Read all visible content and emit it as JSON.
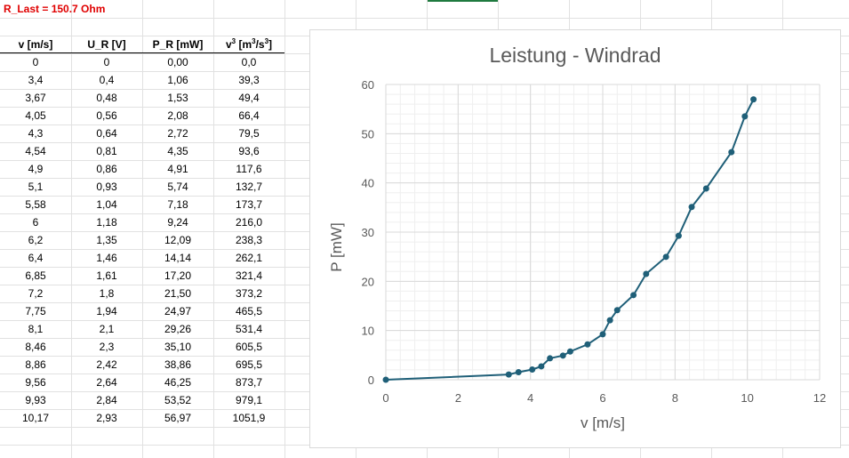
{
  "sheet": {
    "r_last_label": "R_Last = 150.7 Ohm",
    "columns": [
      {
        "base": "v [m/s]",
        "sup1": "",
        "mid": "",
        "sup2": "",
        "tail": ""
      },
      {
        "base": "U_R [V]",
        "sup1": "",
        "mid": "",
        "sup2": "",
        "tail": ""
      },
      {
        "base": "P_R [mW]",
        "sup1": "",
        "mid": "",
        "sup2": "",
        "tail": ""
      },
      {
        "base": "v",
        "sup1": "3",
        "mid": " [m",
        "sup2": "3",
        "tail": "/s"
      }
    ],
    "header_suffix": "3",
    "header_close": "]",
    "rows": [
      [
        "0",
        "0",
        "0,00",
        "0,0"
      ],
      [
        "3,4",
        "0,4",
        "1,06",
        "39,3"
      ],
      [
        "3,67",
        "0,48",
        "1,53",
        "49,4"
      ],
      [
        "4,05",
        "0,56",
        "2,08",
        "66,4"
      ],
      [
        "4,3",
        "0,64",
        "2,72",
        "79,5"
      ],
      [
        "4,54",
        "0,81",
        "4,35",
        "93,6"
      ],
      [
        "4,9",
        "0,86",
        "4,91",
        "117,6"
      ],
      [
        "5,1",
        "0,93",
        "5,74",
        "132,7"
      ],
      [
        "5,58",
        "1,04",
        "7,18",
        "173,7"
      ],
      [
        "6",
        "1,18",
        "9,24",
        "216,0"
      ],
      [
        "6,2",
        "1,35",
        "12,09",
        "238,3"
      ],
      [
        "6,4",
        "1,46",
        "14,14",
        "262,1"
      ],
      [
        "6,85",
        "1,61",
        "17,20",
        "321,4"
      ],
      [
        "7,2",
        "1,8",
        "21,50",
        "373,2"
      ],
      [
        "7,75",
        "1,94",
        "24,97",
        "465,5"
      ],
      [
        "8,1",
        "2,1",
        "29,26",
        "531,4"
      ],
      [
        "8,46",
        "2,3",
        "35,10",
        "605,5"
      ],
      [
        "8,86",
        "2,42",
        "38,86",
        "695,5"
      ],
      [
        "9,56",
        "2,64",
        "46,25",
        "873,7"
      ],
      [
        "9,93",
        "2,84",
        "53,52",
        "979,1"
      ],
      [
        "10,17",
        "2,93",
        "56,97",
        "1051,9"
      ]
    ]
  },
  "colors": {
    "series": "#1f5f78",
    "r_last": "#e00000",
    "grid_major": "#d9d9d9",
    "grid_minor": "#efefef",
    "cell_grid": "#e1e1e1"
  },
  "chart_data": {
    "type": "scatter",
    "mode": "lines+markers",
    "title": "Leistung - Windrad",
    "xlabel": "v [m/s]",
    "ylabel": "P [mW]",
    "xlim": [
      0,
      12
    ],
    "ylim": [
      0,
      60
    ],
    "xticks": [
      0,
      2,
      4,
      6,
      8,
      10,
      12
    ],
    "yticks": [
      0,
      10,
      20,
      30,
      40,
      50,
      60
    ],
    "grid": true,
    "minor_grid": true,
    "legend": "none",
    "series": [
      {
        "x": [
          0,
          3.4,
          3.67,
          4.05,
          4.3,
          4.54,
          4.9,
          5.1,
          5.58,
          6,
          6.2,
          6.4,
          6.85,
          7.2,
          7.75,
          8.1,
          8.46,
          8.86,
          9.56,
          9.93,
          10.17
        ],
        "y": [
          0,
          1.06,
          1.53,
          2.08,
          2.72,
          4.35,
          4.91,
          5.74,
          7.18,
          9.24,
          12.09,
          14.14,
          17.2,
          21.5,
          24.97,
          29.26,
          35.1,
          38.86,
          46.25,
          53.52,
          56.97
        ]
      }
    ]
  }
}
